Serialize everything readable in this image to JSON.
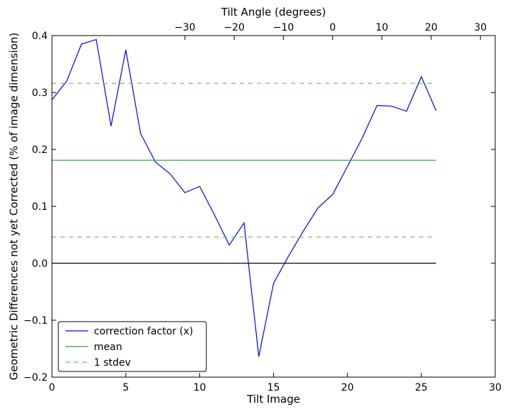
{
  "chart_data": {
    "type": "line",
    "xlabel": "Tilt Image",
    "ylabel": "Geometric Differences not yet Corrected (% of image dimension)",
    "top_xlabel": "Tilt Angle (degrees)",
    "xlim": [
      0,
      30
    ],
    "ylim": [
      -0.2,
      0.4
    ],
    "x_ticks": [
      0,
      5,
      10,
      15,
      20,
      25,
      30
    ],
    "x_tick_labels": [
      "0",
      "5",
      "10",
      "15",
      "20",
      "25",
      "30"
    ],
    "y_ticks": [
      -0.2,
      -0.1,
      0.0,
      0.1,
      0.2,
      0.3,
      0.4
    ],
    "y_tick_labels": [
      "−0.2",
      "−0.1",
      "0.0",
      "0.1",
      "0.2",
      "0.3",
      "0.4"
    ],
    "top_x_ticks": [
      -30,
      -20,
      -10,
      0,
      10,
      20,
      30
    ],
    "top_x_tick_labels": [
      "−30",
      "−20",
      "−10",
      "0",
      "10",
      "20",
      "30"
    ],
    "top_axis_mapping": {
      "angle_at_x0": -57,
      "degrees_per_image": 3
    },
    "grid": false,
    "legend_position": "lower-left",
    "series": [
      {
        "name": "correction factor (x)",
        "color": "#0000ff",
        "style": "solid",
        "x": [
          0,
          1,
          2,
          3,
          4,
          5,
          6,
          7,
          8,
          9,
          10,
          11,
          12,
          13,
          14,
          15,
          16,
          17,
          18,
          19,
          20,
          21,
          22,
          23,
          24,
          25,
          26
        ],
        "y": [
          0.287,
          0.32,
          0.385,
          0.393,
          0.241,
          0.375,
          0.228,
          0.178,
          0.157,
          0.124,
          0.135,
          0.085,
          0.032,
          0.071,
          -0.164,
          -0.035,
          0.012,
          0.056,
          0.097,
          0.121,
          0.17,
          0.22,
          0.277,
          0.276,
          0.267,
          0.328,
          0.268
        ]
      },
      {
        "name": "mean",
        "color": "#2ca02c",
        "style": "solid",
        "x": [
          0,
          26
        ],
        "y": [
          0.181,
          0.181
        ]
      },
      {
        "name": "1 stdev",
        "color": "#5fbf5f",
        "style": "dashed",
        "x": [
          0,
          26
        ],
        "y": [
          0.316,
          0.316
        ]
      },
      {
        "name": "",
        "color": "#5fbf5f",
        "style": "dashed",
        "x": [
          0,
          26
        ],
        "y": [
          0.046,
          0.046
        ]
      },
      {
        "name": "",
        "color": "#000000",
        "style": "solid",
        "x": [
          0,
          26
        ],
        "y": [
          0.0,
          0.0
        ]
      }
    ]
  }
}
